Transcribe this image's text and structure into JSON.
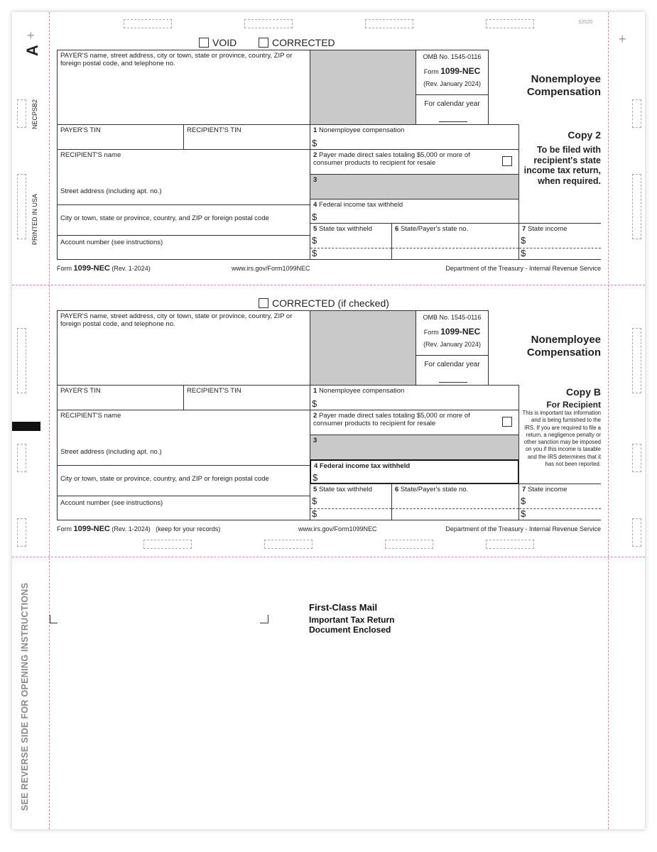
{
  "margin": {
    "copy_letter": "A",
    "form_code": "NECPSB2",
    "printed": "PRINTED IN USA",
    "plate": "S2020",
    "reverse_note": "SEE REVERSE SIDE FOR OPENING INSTRUCTIONS"
  },
  "copy_a": {
    "void_label": "VOID",
    "corrected_label": "CORRECTED",
    "payer_label": "PAYER'S name, street address, city or town, state or province, country, ZIP or foreign postal code, and telephone no.",
    "omb": "OMB No. 1545-0116",
    "form_prefix": "Form",
    "form_name": "1099-NEC",
    "rev": "(Rev. January 2024)",
    "calendar": "For calendar year",
    "title": "Nonemployee Compensation",
    "payer_tin": "PAYER'S TIN",
    "recipient_tin": "RECIPIENT'S TIN",
    "recipient_name": "RECIPIENT'S name",
    "street": "Street address (including apt. no.)",
    "city": "City or town, state or province, country, and ZIP or foreign postal code",
    "account": "Account number (see instructions)",
    "box1_num": "1",
    "box1": "Nonemployee compensation",
    "box2_num": "2",
    "box2": "Payer made direct sales totaling $5,000 or more of consumer products to recipient for resale",
    "box3_num": "3",
    "box4_num": "4",
    "box4": "Federal income tax withheld",
    "box5_num": "5",
    "box5": "State tax withheld",
    "box6_num": "6",
    "box6": "State/Payer's state no.",
    "box7_num": "7",
    "box7": "State income",
    "dollar": "$",
    "copy": "Copy 2",
    "copy_desc": "To be filed with recipient's state income tax return, when required.",
    "footer_form": "Form",
    "footer_name": "1099-NEC",
    "footer_rev": "(Rev. 1-2024)",
    "footer_url": "www.irs.gov/Form1099NEC",
    "footer_dept": "Department of the Treasury - Internal Revenue Service"
  },
  "copy_b": {
    "corrected_label": "CORRECTED (if checked)",
    "payer_label": "PAYER'S name, street address, city or town, state or province, country, ZIP or foreign postal code, and telephone no.",
    "omb": "OMB No. 1545-0116",
    "form_prefix": "Form",
    "form_name": "1099-NEC",
    "rev": "(Rev. January 2024)",
    "calendar": "For calendar year",
    "title": "Nonemployee Compensation",
    "payer_tin": "PAYER'S TIN",
    "recipient_tin": "RECIPIENT'S TIN",
    "recipient_name": "RECIPIENT'S name",
    "street": "Street address (including apt. no.)",
    "city": "City or town, state or province, country, and ZIP or foreign postal code",
    "account": "Account number (see instructions)",
    "box1_num": "1",
    "box1": "Nonemployee compensation",
    "box2_num": "2",
    "box2": "Payer made direct sales totaling $5,000 or more of consumer products to recipient for resale",
    "box3_num": "3",
    "box4_num": "4",
    "box4": "Federal income tax withheld",
    "box5_num": "5",
    "box5": "State tax withheld",
    "box6_num": "6",
    "box6": "State/Payer's state no.",
    "box7_num": "7",
    "box7": "State income",
    "dollar": "$",
    "copy": "Copy B",
    "copy_sub": "For Recipient",
    "copy_desc": "This is important tax information and is being furnished to the IRS. If you are required to file a return, a negligence penalty or other sanction may be imposed on you if this income is taxable and the IRS determines that it has not been reported.",
    "footer_form": "Form",
    "footer_name": "1099-NEC",
    "footer_rev": "(Rev. 1-2024)",
    "footer_keep": "(keep for your records)",
    "footer_url": "www.irs.gov/Form1099NEC",
    "footer_dept": "Department of the Treasury - Internal Revenue Service"
  },
  "mailer": {
    "line1": "First-Class Mail",
    "line2": "Important Tax Return",
    "line3": "Document Enclosed"
  }
}
